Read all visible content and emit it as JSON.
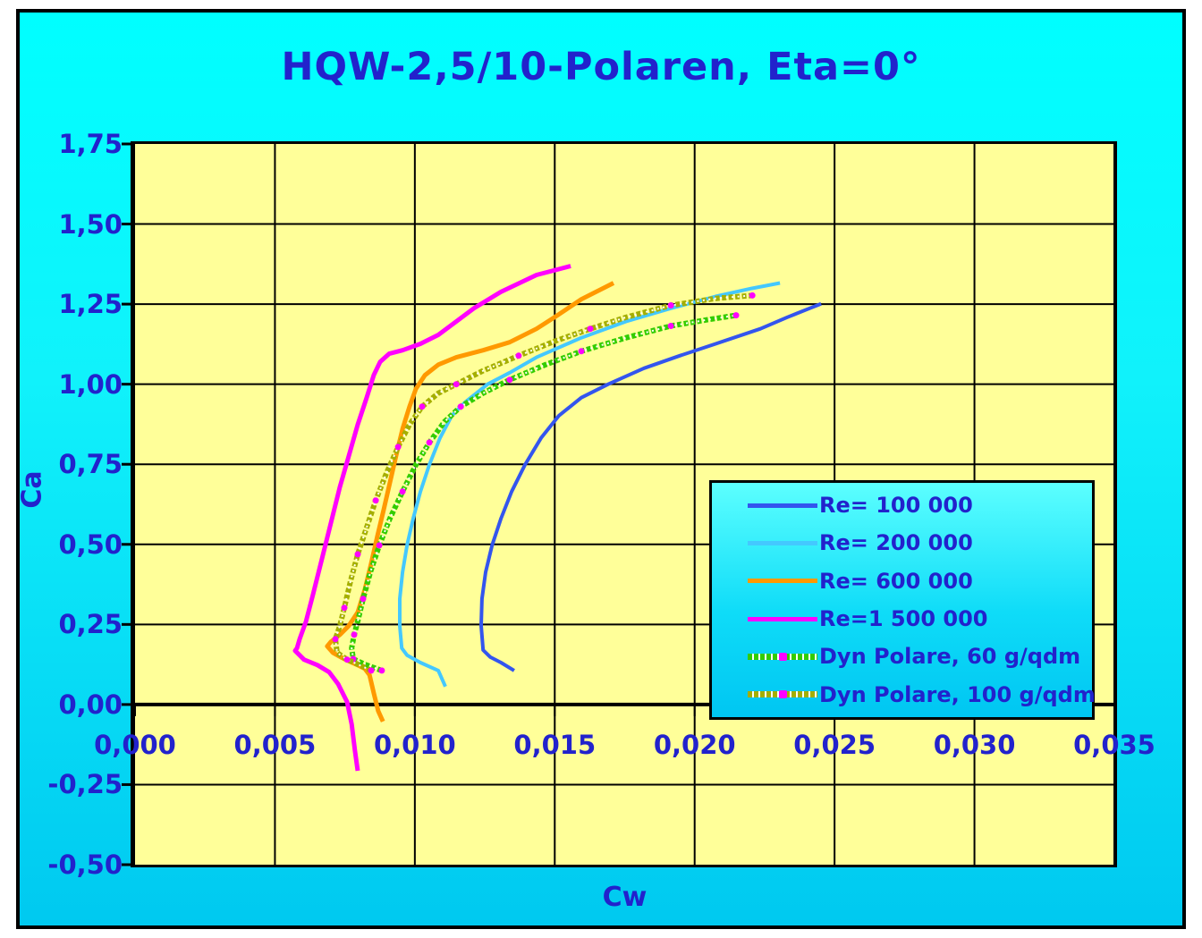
{
  "title": "HQW-2,5/10-Polaren, Eta=0°",
  "axes": {
    "x": {
      "title": "Cw",
      "min": 0,
      "max": 0.035,
      "step": 0.005,
      "tick_labels": [
        "0,000",
        "0,005",
        "0,010",
        "0,015",
        "0,020",
        "0,025",
        "0,030",
        "0,035"
      ]
    },
    "y": {
      "title": "Ca",
      "min": -0.5,
      "max": 1.75,
      "step": 0.25,
      "tick_labels": [
        "1,75",
        "1,50",
        "1,25",
        "1,00",
        "0,75",
        "0,50",
        "0,25",
        "0,00",
        "-0,25",
        "-0,50"
      ]
    }
  },
  "legend": {
    "items": [
      {
        "label": "Re= 100 000",
        "color": "#3355ee",
        "style": "solid"
      },
      {
        "label": "Re= 200 000",
        "color": "#44c8ff",
        "style": "solid"
      },
      {
        "label": "Re= 600 000",
        "color": "#ff9900",
        "style": "solid"
      },
      {
        "label": "Re=1 500 000",
        "color": "#ff00ff",
        "style": "solid"
      },
      {
        "label": "Dyn Polare, 60 g/qdm",
        "color": "#33cc00",
        "style": "dotted",
        "marker_color": "#ff00ff"
      },
      {
        "label": "Dyn Polare, 100 g/qdm",
        "color": "#a4ae00",
        "style": "dotted",
        "marker_color": "#ff00ff"
      }
    ]
  },
  "chart_data": {
    "type": "line",
    "title": "HQW-2,5/10-Polaren, Eta=0°",
    "xlabel": "Cw",
    "ylabel": "Ca",
    "xlim": [
      0,
      0.035
    ],
    "ylim": [
      -0.5,
      1.75
    ],
    "grid": true,
    "legend_position": "right-middle",
    "series": [
      {
        "name": "Re= 100 000",
        "color": "#3355ee",
        "style": "solid",
        "width": 4,
        "points": [
          [
            0.01355,
            0.106
          ],
          [
            0.01308,
            0.131
          ],
          [
            0.0127,
            0.148
          ],
          [
            0.01244,
            0.17
          ],
          [
            0.01237,
            0.246
          ],
          [
            0.0124,
            0.33
          ],
          [
            0.01253,
            0.413
          ],
          [
            0.01276,
            0.497
          ],
          [
            0.01308,
            0.581
          ],
          [
            0.01346,
            0.665
          ],
          [
            0.01394,
            0.749
          ],
          [
            0.01451,
            0.832
          ],
          [
            0.01515,
            0.902
          ],
          [
            0.01595,
            0.958
          ],
          [
            0.01691,
            1.0
          ],
          [
            0.01819,
            1.05
          ],
          [
            0.01947,
            1.089
          ],
          [
            0.02075,
            1.126
          ],
          [
            0.02235,
            1.173
          ],
          [
            0.02331,
            1.209
          ],
          [
            0.02411,
            1.237
          ],
          [
            0.02452,
            1.251
          ]
        ]
      },
      {
        "name": "Re= 200 000",
        "color": "#44c8ff",
        "style": "solid",
        "width": 4,
        "points": [
          [
            0.01109,
            0.056
          ],
          [
            0.01084,
            0.106
          ],
          [
            0.0102,
            0.131
          ],
          [
            0.00972,
            0.154
          ],
          [
            0.00953,
            0.176
          ],
          [
            0.00946,
            0.246
          ],
          [
            0.00946,
            0.33
          ],
          [
            0.00956,
            0.413
          ],
          [
            0.00972,
            0.497
          ],
          [
            0.00994,
            0.581
          ],
          [
            0.0102,
            0.665
          ],
          [
            0.01052,
            0.749
          ],
          [
            0.0109,
            0.832
          ],
          [
            0.01132,
            0.902
          ],
          [
            0.0118,
            0.944
          ],
          [
            0.0126,
            1.0
          ],
          [
            0.01339,
            1.036
          ],
          [
            0.01435,
            1.084
          ],
          [
            0.01595,
            1.145
          ],
          [
            0.01755,
            1.196
          ],
          [
            0.01915,
            1.237
          ],
          [
            0.02075,
            1.274
          ],
          [
            0.02203,
            1.299
          ],
          [
            0.02305,
            1.316
          ]
        ]
      },
      {
        "name": "Re= 600 000",
        "color": "#ff9900",
        "style": "solid",
        "width": 5,
        "points": [
          [
            0.00886,
            -0.053
          ],
          [
            0.00869,
            -0.02
          ],
          [
            0.00853,
            0.036
          ],
          [
            0.00838,
            0.092
          ],
          [
            0.00821,
            0.112
          ],
          [
            0.00796,
            0.123
          ],
          [
            0.00748,
            0.142
          ],
          [
            0.00707,
            0.162
          ],
          [
            0.00687,
            0.182
          ],
          [
            0.007,
            0.196
          ],
          [
            0.00732,
            0.218
          ],
          [
            0.00764,
            0.246
          ],
          [
            0.00796,
            0.288
          ],
          [
            0.00821,
            0.358
          ],
          [
            0.00844,
            0.441
          ],
          [
            0.00866,
            0.525
          ],
          [
            0.00889,
            0.609
          ],
          [
            0.00911,
            0.693
          ],
          [
            0.00933,
            0.777
          ],
          [
            0.00956,
            0.86
          ],
          [
            0.00981,
            0.93
          ],
          [
            0.01004,
            0.986
          ],
          [
            0.01036,
            1.028
          ],
          [
            0.01084,
            1.061
          ],
          [
            0.01148,
            1.084
          ],
          [
            0.01244,
            1.106
          ],
          [
            0.01339,
            1.131
          ],
          [
            0.01435,
            1.173
          ],
          [
            0.01499,
            1.209
          ],
          [
            0.01595,
            1.265
          ],
          [
            0.0171,
            1.316
          ]
        ]
      },
      {
        "name": "Re=1 500 000",
        "color": "#ff00ff",
        "style": "solid",
        "width": 5,
        "points": [
          [
            0.00796,
            -0.207
          ],
          [
            0.00786,
            -0.145
          ],
          [
            0.00774,
            -0.061
          ],
          [
            0.00758,
            0.008
          ],
          [
            0.00726,
            0.064
          ],
          [
            0.00694,
            0.101
          ],
          [
            0.00652,
            0.123
          ],
          [
            0.00604,
            0.14
          ],
          [
            0.00572,
            0.168
          ],
          [
            0.00579,
            0.176
          ],
          [
            0.00588,
            0.204
          ],
          [
            0.00611,
            0.26
          ],
          [
            0.00636,
            0.344
          ],
          [
            0.00668,
            0.455
          ],
          [
            0.007,
            0.567
          ],
          [
            0.00732,
            0.679
          ],
          [
            0.00764,
            0.776
          ],
          [
            0.00796,
            0.874
          ],
          [
            0.00828,
            0.958
          ],
          [
            0.00853,
            1.028
          ],
          [
            0.00876,
            1.07
          ],
          [
            0.00908,
            1.095
          ],
          [
            0.00956,
            1.106
          ],
          [
            0.0102,
            1.126
          ],
          [
            0.01084,
            1.154
          ],
          [
            0.01148,
            1.196
          ],
          [
            0.01211,
            1.237
          ],
          [
            0.01307,
            1.288
          ],
          [
            0.01435,
            1.341
          ],
          [
            0.01557,
            1.369
          ]
        ]
      },
      {
        "name": "Dyn Polare, 60 g/qdm",
        "color": "#33cc00",
        "style": "dotted",
        "width": 6,
        "marker_color": "#ff00ff",
        "points": [
          [
            0.00882,
            0.106
          ],
          [
            0.00828,
            0.123
          ],
          [
            0.0078,
            0.142
          ],
          [
            0.00774,
            0.176
          ],
          [
            0.00783,
            0.218
          ],
          [
            0.00796,
            0.26
          ],
          [
            0.00815,
            0.33
          ],
          [
            0.00841,
            0.413
          ],
          [
            0.00873,
            0.497
          ],
          [
            0.00911,
            0.581
          ],
          [
            0.00956,
            0.665
          ],
          [
            0.01004,
            0.749
          ],
          [
            0.01052,
            0.818
          ],
          [
            0.01106,
            0.883
          ],
          [
            0.01164,
            0.93
          ],
          [
            0.01244,
            0.972
          ],
          [
            0.01339,
            1.014
          ],
          [
            0.01467,
            1.061
          ],
          [
            0.01595,
            1.103
          ],
          [
            0.01755,
            1.145
          ],
          [
            0.01915,
            1.182
          ],
          [
            0.02043,
            1.201
          ],
          [
            0.02148,
            1.215
          ]
        ]
      },
      {
        "name": "Dyn Polare, 100 g/qdm",
        "color": "#a4ae00",
        "style": "dotted",
        "width": 6,
        "marker_color": "#ff00ff",
        "points": [
          [
            0.00844,
            0.106
          ],
          [
            0.00796,
            0.126
          ],
          [
            0.00758,
            0.14
          ],
          [
            0.00722,
            0.162
          ],
          [
            0.00716,
            0.204
          ],
          [
            0.00732,
            0.246
          ],
          [
            0.00748,
            0.302
          ],
          [
            0.0077,
            0.385
          ],
          [
            0.00796,
            0.469
          ],
          [
            0.00828,
            0.553
          ],
          [
            0.0086,
            0.637
          ],
          [
            0.00898,
            0.721
          ],
          [
            0.0094,
            0.804
          ],
          [
            0.00981,
            0.874
          ],
          [
            0.01026,
            0.93
          ],
          [
            0.01084,
            0.972
          ],
          [
            0.01148,
            1.0
          ],
          [
            0.01244,
            1.042
          ],
          [
            0.01371,
            1.089
          ],
          [
            0.01499,
            1.134
          ],
          [
            0.01627,
            1.173
          ],
          [
            0.01755,
            1.209
          ],
          [
            0.01915,
            1.246
          ],
          [
            0.02075,
            1.268
          ],
          [
            0.02206,
            1.277
          ]
        ]
      }
    ]
  },
  "colors": {
    "canvas_top": "#00ffff",
    "canvas_bottom": "#00c9f0",
    "plot_background": "#ffff99",
    "grid": "#000000",
    "text": "#2222cc"
  }
}
